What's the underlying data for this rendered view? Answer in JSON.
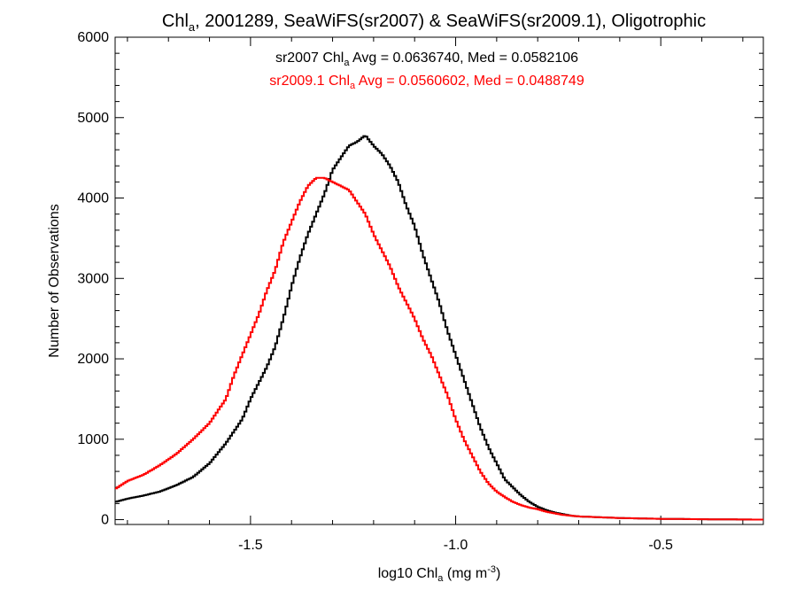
{
  "chart_data": {
    "type": "line",
    "title": {
      "pre": "Chl",
      "sub": "a",
      "post": ", 2001289, SeaWiFS(sr2007) & SeaWiFS(sr2009.1), Oligotrophic"
    },
    "xlabel": {
      "pre": "log10 Chl",
      "sub": "a",
      "mid": " (mg m",
      "sup": "-3",
      "post": ")"
    },
    "ylabel": "Number of Observations",
    "xlim": [
      -1.83,
      -0.25
    ],
    "ylim": [
      -60,
      6000
    ],
    "xticks": [
      -1.5,
      -1.0,
      -0.5
    ],
    "xtick_labels": [
      "-1.5",
      "-1.0",
      "-0.5"
    ],
    "yticks": [
      0,
      1000,
      2000,
      3000,
      4000,
      5000,
      6000
    ],
    "ytick_labels": [
      "0",
      "1000",
      "2000",
      "3000",
      "4000",
      "5000",
      "6000"
    ],
    "grid": false,
    "legend_position": "top-center",
    "step": true,
    "series": [
      {
        "name": "sr2007",
        "color": "#000000",
        "label": {
          "pre": "sr2007 Chl",
          "sub": "a",
          "post": " Avg = 0.0636740, Med = 0.0582106"
        },
        "x": [
          -1.83,
          -1.8,
          -1.76,
          -1.72,
          -1.68,
          -1.64,
          -1.6,
          -1.56,
          -1.52,
          -1.5,
          -1.48,
          -1.46,
          -1.44,
          -1.42,
          -1.4,
          -1.38,
          -1.36,
          -1.34,
          -1.32,
          -1.3,
          -1.28,
          -1.26,
          -1.24,
          -1.22,
          -1.2,
          -1.18,
          -1.16,
          -1.14,
          -1.12,
          -1.1,
          -1.08,
          -1.06,
          -1.04,
          -1.02,
          -1.0,
          -0.98,
          -0.96,
          -0.94,
          -0.92,
          -0.9,
          -0.88,
          -0.86,
          -0.84,
          -0.82,
          -0.8,
          -0.78,
          -0.76,
          -0.74,
          -0.72,
          -0.7,
          -0.65,
          -0.6,
          -0.55,
          -0.5,
          -0.45,
          -0.4,
          -0.35,
          -0.3,
          -0.25
        ],
        "y": [
          220,
          260,
          300,
          350,
          430,
          530,
          700,
          950,
          1250,
          1500,
          1700,
          1900,
          2150,
          2500,
          2900,
          3250,
          3550,
          3800,
          4050,
          4350,
          4500,
          4650,
          4700,
          4780,
          4650,
          4550,
          4400,
          4200,
          3900,
          3650,
          3300,
          3000,
          2700,
          2350,
          2050,
          1750,
          1450,
          1150,
          900,
          700,
          500,
          400,
          300,
          220,
          160,
          120,
          90,
          70,
          50,
          40,
          30,
          20,
          15,
          10,
          8,
          5,
          3,
          2,
          0
        ]
      },
      {
        "name": "sr2009.1",
        "color": "#ff0000",
        "label": {
          "pre": "sr2009.1 Chl",
          "sub": "a",
          "post": " Avg = 0.0560602, Med = 0.0488749"
        },
        "x": [
          -1.83,
          -1.8,
          -1.76,
          -1.72,
          -1.68,
          -1.64,
          -1.6,
          -1.56,
          -1.54,
          -1.52,
          -1.5,
          -1.48,
          -1.46,
          -1.44,
          -1.42,
          -1.4,
          -1.38,
          -1.36,
          -1.34,
          -1.32,
          -1.3,
          -1.28,
          -1.26,
          -1.24,
          -1.22,
          -1.2,
          -1.18,
          -1.16,
          -1.14,
          -1.12,
          -1.1,
          -1.08,
          -1.06,
          -1.04,
          -1.02,
          -1.0,
          -0.98,
          -0.96,
          -0.94,
          -0.92,
          -0.9,
          -0.88,
          -0.86,
          -0.84,
          -0.82,
          -0.8,
          -0.78,
          -0.76,
          -0.74,
          -0.72,
          -0.7,
          -0.65,
          -0.6,
          -0.55,
          -0.5,
          -0.45,
          -0.4,
          -0.35,
          -0.3,
          -0.25
        ],
        "y": [
          380,
          480,
          560,
          680,
          820,
          1000,
          1200,
          1500,
          1800,
          2050,
          2300,
          2550,
          2850,
          3100,
          3450,
          3700,
          3950,
          4150,
          4250,
          4250,
          4200,
          4150,
          4100,
          3950,
          3800,
          3550,
          3350,
          3150,
          2900,
          2700,
          2500,
          2250,
          2050,
          1800,
          1550,
          1250,
          1000,
          800,
          600,
          450,
          350,
          280,
          220,
          180,
          150,
          130,
          100,
          80,
          60,
          50,
          40,
          30,
          20,
          15,
          10,
          8,
          5,
          3,
          2,
          0
        ]
      }
    ]
  }
}
